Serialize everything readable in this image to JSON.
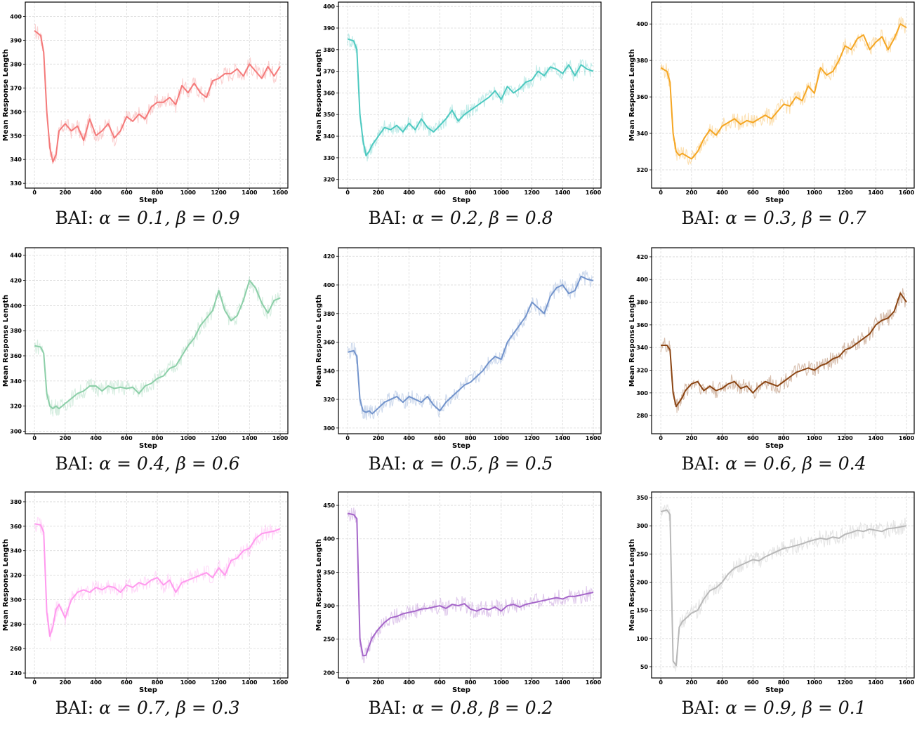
{
  "chart_data": [
    {
      "type": "line",
      "title": "",
      "xlabel": "Step",
      "ylabel": "Mean Response Length",
      "caption_prefix": "BAI:",
      "caption_formula": "α = 0.1, β = 0.9",
      "color": "#f47a7a",
      "xlim": [
        -60,
        1650
      ],
      "ylim": [
        328,
        406
      ],
      "xticks": [
        0,
        200,
        400,
        600,
        800,
        1000,
        1200,
        1400,
        1600
      ],
      "yticks": [
        330,
        340,
        350,
        360,
        370,
        380,
        390,
        400
      ],
      "grid": true,
      "x": [
        0,
        40,
        60,
        80,
        100,
        120,
        140,
        160,
        200,
        240,
        280,
        320,
        360,
        400,
        440,
        480,
        520,
        560,
        600,
        640,
        680,
        720,
        760,
        800,
        840,
        880,
        920,
        960,
        1000,
        1040,
        1080,
        1120,
        1160,
        1200,
        1240,
        1280,
        1320,
        1360,
        1400,
        1440,
        1480,
        1520,
        1560,
        1600
      ],
      "y": [
        394,
        392,
        385,
        360,
        345,
        339,
        342,
        352,
        355,
        352,
        354,
        348,
        357,
        350,
        352,
        355,
        349,
        352,
        358,
        356,
        359,
        357,
        362,
        364,
        364,
        366,
        363,
        371,
        368,
        372,
        368,
        366,
        373,
        374,
        376,
        376,
        378,
        375,
        380,
        377,
        374,
        379,
        375,
        379
      ]
    },
    {
      "type": "line",
      "title": "",
      "xlabel": "Step",
      "ylabel": "Mean Response Length",
      "caption_prefix": "BAI:",
      "caption_formula": "α = 0.2, β = 0.8",
      "color": "#4dc9c0",
      "xlim": [
        -60,
        1650
      ],
      "ylim": [
        316,
        402
      ],
      "xticks": [
        0,
        200,
        400,
        600,
        800,
        1000,
        1200,
        1400,
        1600
      ],
      "yticks": [
        320,
        330,
        340,
        350,
        360,
        370,
        380,
        390,
        400
      ],
      "grid": true,
      "x": [
        0,
        40,
        60,
        80,
        100,
        120,
        140,
        160,
        200,
        240,
        280,
        320,
        360,
        400,
        440,
        480,
        520,
        560,
        600,
        640,
        680,
        720,
        760,
        800,
        840,
        880,
        920,
        960,
        1000,
        1040,
        1080,
        1120,
        1160,
        1200,
        1240,
        1280,
        1320,
        1360,
        1400,
        1440,
        1480,
        1520,
        1560,
        1600
      ],
      "y": [
        385,
        384,
        380,
        350,
        338,
        331,
        333,
        336,
        340,
        344,
        343,
        345,
        342,
        346,
        343,
        348,
        344,
        342,
        345,
        348,
        352,
        347,
        350,
        352,
        354,
        356,
        358,
        361,
        357,
        363,
        360,
        362,
        365,
        366,
        370,
        368,
        372,
        371,
        369,
        373,
        368,
        373,
        371,
        370
      ]
    },
    {
      "type": "line",
      "title": "",
      "xlabel": "Step",
      "ylabel": "Mean Response Length",
      "caption_prefix": "BAI:",
      "caption_formula": "α = 0.3, β = 0.7",
      "color": "#f5a623",
      "xlim": [
        -60,
        1650
      ],
      "ylim": [
        310,
        412
      ],
      "xticks": [
        0,
        200,
        400,
        600,
        800,
        1000,
        1200,
        1400,
        1600
      ],
      "yticks": [
        320,
        340,
        360,
        380,
        400
      ],
      "grid": true,
      "x": [
        0,
        40,
        60,
        80,
        100,
        120,
        140,
        160,
        200,
        240,
        280,
        320,
        360,
        400,
        440,
        480,
        520,
        560,
        600,
        640,
        680,
        720,
        760,
        800,
        840,
        880,
        920,
        960,
        1000,
        1040,
        1080,
        1120,
        1160,
        1200,
        1240,
        1280,
        1320,
        1360,
        1400,
        1440,
        1480,
        1520,
        1560,
        1600
      ],
      "y": [
        376,
        374,
        368,
        340,
        330,
        328,
        329,
        328,
        326,
        330,
        337,
        342,
        339,
        344,
        346,
        348,
        345,
        347,
        346,
        348,
        350,
        348,
        352,
        356,
        355,
        360,
        358,
        366,
        362,
        376,
        372,
        374,
        380,
        388,
        386,
        392,
        394,
        386,
        390,
        393,
        386,
        392,
        400,
        398
      ]
    },
    {
      "type": "line",
      "title": "",
      "xlabel": "Step",
      "ylabel": "Mean Response Length",
      "caption_prefix": "BAI:",
      "caption_formula": "α = 0.4, β = 0.6",
      "color": "#8ccfa8",
      "xlim": [
        -60,
        1650
      ],
      "ylim": [
        298,
        446
      ],
      "xticks": [
        0,
        200,
        400,
        600,
        800,
        1000,
        1200,
        1400,
        1600
      ],
      "yticks": [
        300,
        320,
        340,
        360,
        380,
        400,
        420,
        440
      ],
      "grid": true,
      "x": [
        0,
        40,
        60,
        80,
        100,
        120,
        140,
        160,
        200,
        240,
        280,
        320,
        360,
        400,
        440,
        480,
        520,
        560,
        600,
        640,
        680,
        720,
        760,
        800,
        840,
        880,
        920,
        960,
        1000,
        1040,
        1080,
        1120,
        1160,
        1200,
        1240,
        1280,
        1320,
        1360,
        1400,
        1440,
        1480,
        1520,
        1560,
        1600
      ],
      "y": [
        368,
        367,
        362,
        330,
        320,
        318,
        320,
        318,
        322,
        326,
        330,
        332,
        336,
        336,
        332,
        336,
        334,
        335,
        334,
        335,
        330,
        336,
        338,
        342,
        344,
        350,
        352,
        360,
        368,
        374,
        384,
        390,
        396,
        412,
        396,
        388,
        392,
        404,
        420,
        414,
        402,
        394,
        404,
        406
      ]
    },
    {
      "type": "line",
      "title": "",
      "xlabel": "Step",
      "ylabel": "Mean Response Length",
      "caption_prefix": "BAI:",
      "caption_formula": "α = 0.5, β = 0.5",
      "color": "#7394cc",
      "xlim": [
        -60,
        1650
      ],
      "ylim": [
        296,
        426
      ],
      "xticks": [
        0,
        200,
        400,
        600,
        800,
        1000,
        1200,
        1400,
        1600
      ],
      "yticks": [
        300,
        320,
        340,
        360,
        380,
        400,
        420
      ],
      "grid": true,
      "x": [
        0,
        40,
        60,
        80,
        100,
        120,
        140,
        160,
        200,
        240,
        280,
        320,
        360,
        400,
        440,
        480,
        520,
        560,
        600,
        640,
        680,
        720,
        760,
        800,
        840,
        880,
        920,
        960,
        1000,
        1040,
        1080,
        1120,
        1160,
        1200,
        1240,
        1280,
        1320,
        1360,
        1400,
        1440,
        1480,
        1520,
        1560,
        1600
      ],
      "y": [
        353,
        354,
        350,
        320,
        312,
        311,
        312,
        310,
        314,
        318,
        320,
        322,
        318,
        322,
        320,
        318,
        322,
        316,
        312,
        318,
        322,
        326,
        330,
        332,
        336,
        340,
        346,
        350,
        348,
        360,
        366,
        372,
        378,
        388,
        384,
        380,
        392,
        398,
        400,
        394,
        396,
        406,
        404,
        403
      ]
    },
    {
      "type": "line",
      "title": "",
      "xlabel": "Step",
      "ylabel": "Mean Response Length",
      "caption_prefix": "BAI:",
      "caption_formula": "α = 0.6, β = 0.4",
      "color": "#8b4513",
      "xlim": [
        -60,
        1650
      ],
      "ylim": [
        264,
        428
      ],
      "xticks": [
        0,
        200,
        400,
        600,
        800,
        1000,
        1200,
        1400,
        1600
      ],
      "yticks": [
        280,
        300,
        320,
        340,
        360,
        380,
        400,
        420
      ],
      "grid": true,
      "x": [
        0,
        40,
        60,
        80,
        100,
        120,
        140,
        160,
        200,
        240,
        280,
        320,
        360,
        400,
        440,
        480,
        520,
        560,
        600,
        640,
        680,
        720,
        760,
        800,
        840,
        880,
        920,
        960,
        1000,
        1040,
        1080,
        1120,
        1160,
        1200,
        1240,
        1280,
        1320,
        1360,
        1400,
        1440,
        1480,
        1520,
        1560,
        1600
      ],
      "y": [
        342,
        342,
        338,
        300,
        288,
        292,
        296,
        302,
        308,
        310,
        302,
        306,
        302,
        304,
        308,
        310,
        304,
        306,
        300,
        306,
        310,
        308,
        306,
        310,
        314,
        318,
        320,
        322,
        320,
        324,
        326,
        330,
        332,
        338,
        340,
        344,
        348,
        352,
        360,
        364,
        366,
        372,
        388,
        380
      ]
    },
    {
      "type": "line",
      "title": "",
      "xlabel": "Step",
      "ylabel": "Mean Response Length",
      "caption_prefix": "BAI:",
      "caption_formula": "α = 0.7, β = 0.3",
      "color": "#ff99ee",
      "xlim": [
        -60,
        1650
      ],
      "ylim": [
        236,
        388
      ],
      "xticks": [
        0,
        200,
        400,
        600,
        800,
        1000,
        1200,
        1400,
        1600
      ],
      "yticks": [
        240,
        260,
        280,
        300,
        320,
        340,
        360,
        380
      ],
      "grid": true,
      "x": [
        0,
        40,
        60,
        80,
        100,
        120,
        140,
        160,
        200,
        240,
        280,
        320,
        360,
        400,
        440,
        480,
        520,
        560,
        600,
        640,
        680,
        720,
        760,
        800,
        840,
        880,
        920,
        960,
        1000,
        1040,
        1080,
        1120,
        1160,
        1200,
        1240,
        1280,
        1320,
        1360,
        1400,
        1440,
        1480,
        1520,
        1560,
        1600
      ],
      "y": [
        362,
        361,
        355,
        290,
        270,
        278,
        292,
        296,
        285,
        300,
        306,
        308,
        306,
        310,
        308,
        311,
        310,
        306,
        312,
        310,
        314,
        312,
        316,
        318,
        312,
        316,
        306,
        314,
        316,
        318,
        320,
        322,
        318,
        326,
        320,
        332,
        334,
        340,
        342,
        350,
        354,
        355,
        356,
        358
      ]
    },
    {
      "type": "line",
      "title": "",
      "xlabel": "Step",
      "ylabel": "Mean Response Length",
      "caption_prefix": "BAI:",
      "caption_formula": "α = 0.8, β = 0.2",
      "color": "#a566c9",
      "xlim": [
        -60,
        1650
      ],
      "ylim": [
        192,
        470
      ],
      "xticks": [
        0,
        200,
        400,
        600,
        800,
        1000,
        1200,
        1400,
        1600
      ],
      "yticks": [
        200,
        250,
        300,
        350,
        400,
        450
      ],
      "grid": true,
      "x": [
        0,
        40,
        60,
        80,
        100,
        120,
        140,
        160,
        200,
        240,
        280,
        320,
        360,
        400,
        440,
        480,
        520,
        560,
        600,
        640,
        680,
        720,
        760,
        800,
        840,
        880,
        920,
        960,
        1000,
        1040,
        1080,
        1120,
        1160,
        1200,
        1240,
        1280,
        1320,
        1360,
        1400,
        1440,
        1480,
        1520,
        1560,
        1600
      ],
      "y": [
        438,
        436,
        430,
        250,
        225,
        226,
        240,
        252,
        265,
        275,
        282,
        284,
        288,
        290,
        292,
        295,
        296,
        298,
        300,
        296,
        302,
        300,
        303,
        295,
        292,
        296,
        294,
        298,
        292,
        300,
        302,
        298,
        302,
        304,
        306,
        308,
        310,
        312,
        310,
        314,
        314,
        316,
        318,
        320
      ]
    },
    {
      "type": "line",
      "title": "",
      "xlabel": "Step",
      "ylabel": "Mean Response Length",
      "caption_prefix": "BAI:",
      "caption_formula": "α = 0.9, β = 0.1",
      "color": "#b8b8b8",
      "xlim": [
        -60,
        1650
      ],
      "ylim": [
        30,
        360
      ],
      "xticks": [
        0,
        200,
        400,
        600,
        800,
        1000,
        1200,
        1400,
        1600
      ],
      "yticks": [
        50,
        100,
        150,
        200,
        250,
        300,
        350
      ],
      "grid": true,
      "x": [
        0,
        40,
        60,
        80,
        100,
        120,
        140,
        160,
        200,
        240,
        280,
        320,
        360,
        400,
        440,
        480,
        520,
        560,
        600,
        640,
        680,
        720,
        760,
        800,
        840,
        880,
        920,
        960,
        1000,
        1040,
        1080,
        1120,
        1160,
        1200,
        1240,
        1280,
        1320,
        1360,
        1400,
        1440,
        1480,
        1520,
        1560,
        1600
      ],
      "y": [
        325,
        328,
        320,
        60,
        52,
        120,
        130,
        135,
        145,
        150,
        170,
        185,
        190,
        200,
        215,
        225,
        230,
        235,
        240,
        238,
        245,
        250,
        255,
        260,
        262,
        265,
        268,
        272,
        275,
        278,
        276,
        280,
        278,
        285,
        288,
        292,
        290,
        294,
        292,
        290,
        295,
        296,
        298,
        300
      ]
    }
  ]
}
